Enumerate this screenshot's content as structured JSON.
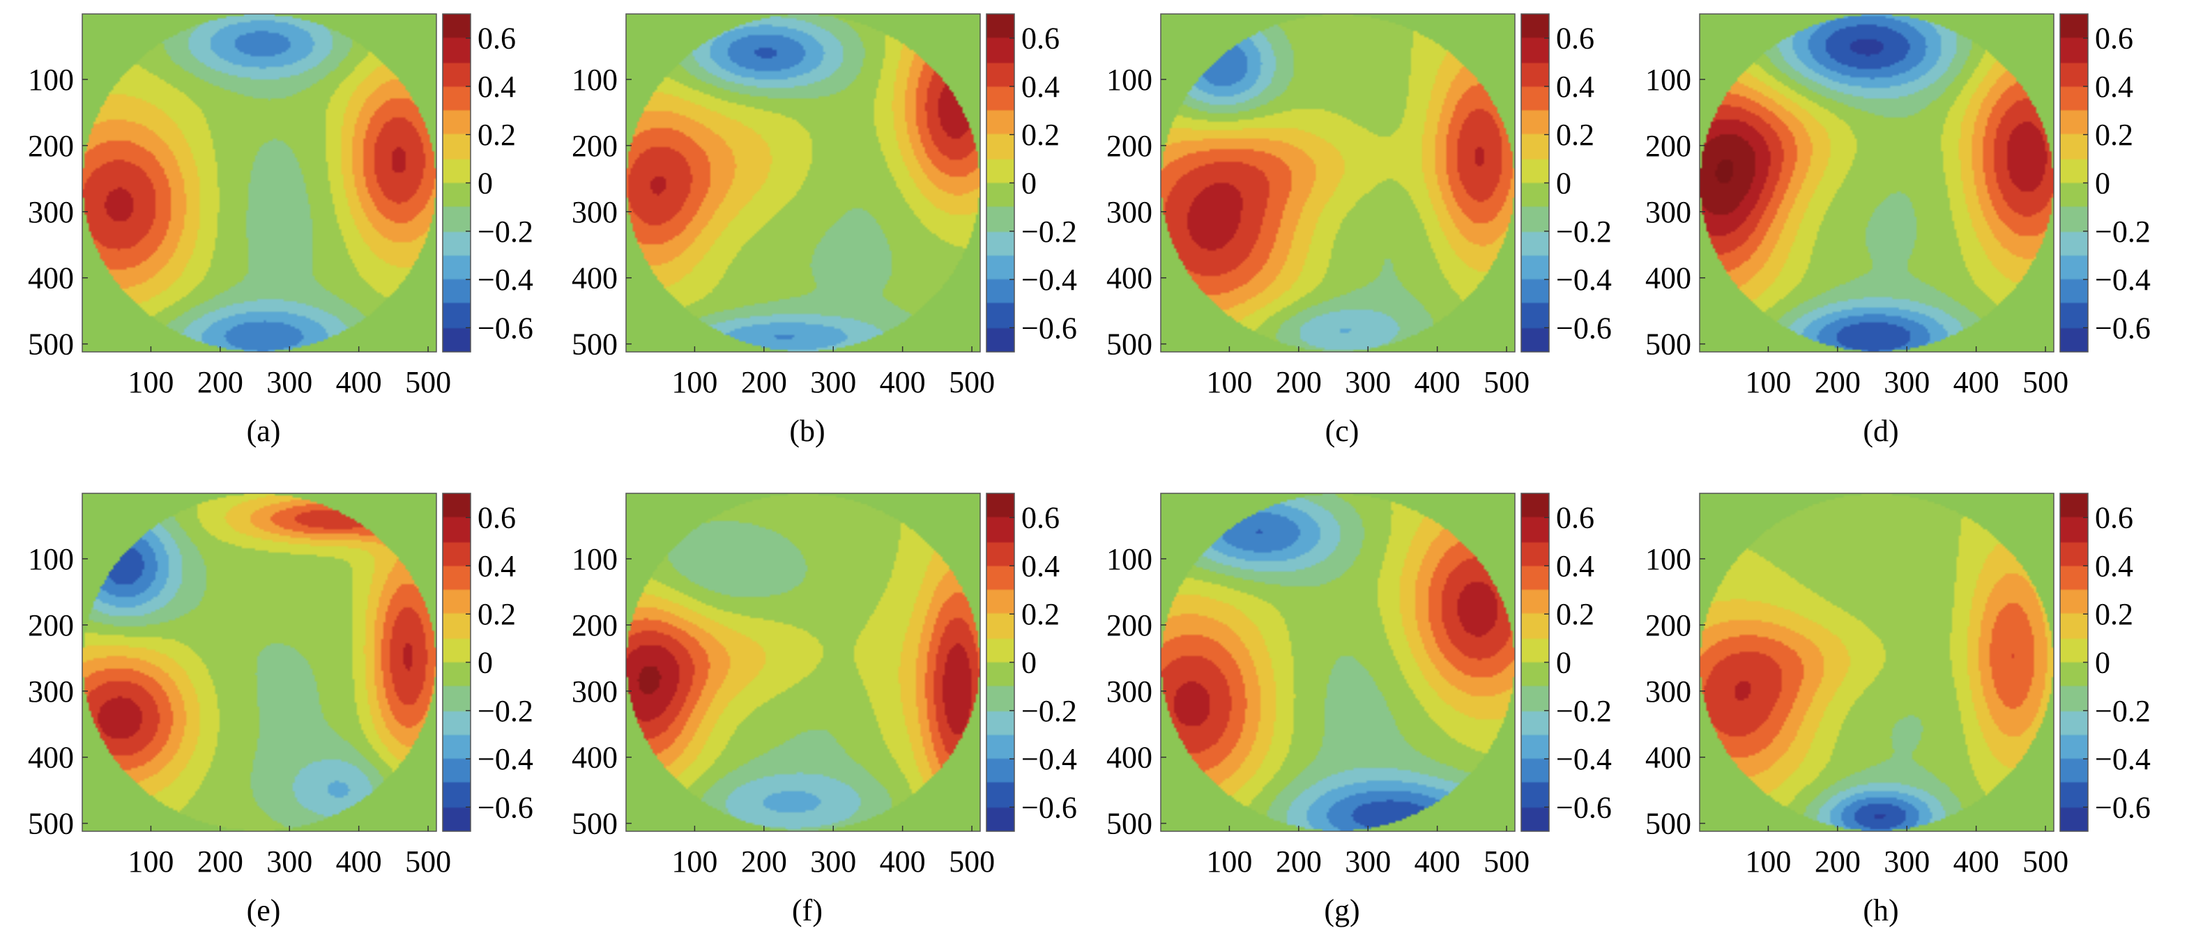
{
  "colorbar": {
    "ticks": [
      "0.6",
      "0.4",
      "0.2",
      "0",
      "−0.2",
      "−0.4",
      "−0.6"
    ],
    "range": [
      -0.7,
      0.7
    ]
  },
  "axes": {
    "x_ticks": [
      "100",
      "200",
      "300",
      "400",
      "500"
    ],
    "y_ticks": [
      "100",
      "200",
      "300",
      "400",
      "500"
    ],
    "x_range": [
      1,
      512
    ],
    "y_range": [
      1,
      512
    ]
  },
  "colors": {
    "background": "#8cc654",
    "colormap": [
      "#2a2f8e",
      "#2c59b0",
      "#4c9ed6",
      "#86c7c9",
      "#8cc654",
      "#e0dc3c",
      "#f3a83c",
      "#e5502b",
      "#b21f24",
      "#7b1416"
    ]
  },
  "chart_data": [
    {
      "type": "heatmap",
      "label": "(a)",
      "blobs": [
        {
          "x": 60,
          "y": 290,
          "sx": 80,
          "sy": 95,
          "v": 0.55
        },
        {
          "x": 455,
          "y": 225,
          "sx": 55,
          "sy": 95,
          "v": 0.55
        },
        {
          "x": 260,
          "y": 45,
          "sx": 85,
          "sy": 38,
          "v": -0.42
        },
        {
          "x": 260,
          "y": 490,
          "sx": 95,
          "sy": 35,
          "v": -0.42
        },
        {
          "x": 270,
          "y": 300,
          "sx": 120,
          "sy": 140,
          "v": -0.15
        }
      ]
    },
    {
      "type": "heatmap",
      "label": "(b)",
      "blobs": [
        {
          "x": 40,
          "y": 270,
          "sx": 60,
          "sy": 90,
          "v": 0.45
        },
        {
          "x": 160,
          "y": 230,
          "sx": 90,
          "sy": 70,
          "v": 0.2
        },
        {
          "x": 475,
          "y": 150,
          "sx": 55,
          "sy": 100,
          "v": 0.6
        },
        {
          "x": 200,
          "y": 60,
          "sx": 80,
          "sy": 40,
          "v": -0.5
        },
        {
          "x": 220,
          "y": 490,
          "sx": 110,
          "sy": 25,
          "v": -0.35
        },
        {
          "x": 330,
          "y": 320,
          "sx": 150,
          "sy": 150,
          "v": -0.13
        }
      ]
    },
    {
      "type": "heatmap",
      "label": "(c)",
      "blobs": [
        {
          "x": 80,
          "y": 330,
          "sx": 95,
          "sy": 95,
          "v": 0.55
        },
        {
          "x": 180,
          "y": 230,
          "sx": 120,
          "sy": 50,
          "v": 0.2
        },
        {
          "x": 460,
          "y": 220,
          "sx": 50,
          "sy": 110,
          "v": 0.55
        },
        {
          "x": 90,
          "y": 80,
          "sx": 55,
          "sy": 55,
          "v": -0.5
        },
        {
          "x": 310,
          "y": 330,
          "sx": 140,
          "sy": 160,
          "v": -0.13
        },
        {
          "x": 250,
          "y": 480,
          "sx": 80,
          "sy": 30,
          "v": -0.25
        }
      ]
    },
    {
      "type": "heatmap",
      "label": "(d)",
      "blobs": [
        {
          "x": 30,
          "y": 260,
          "sx": 70,
          "sy": 110,
          "v": 0.65
        },
        {
          "x": 120,
          "y": 200,
          "sx": 80,
          "sy": 60,
          "v": 0.2
        },
        {
          "x": 470,
          "y": 220,
          "sx": 60,
          "sy": 110,
          "v": 0.6
        },
        {
          "x": 240,
          "y": 50,
          "sx": 95,
          "sy": 50,
          "v": -0.6
        },
        {
          "x": 250,
          "y": 490,
          "sx": 90,
          "sy": 35,
          "v": -0.55
        },
        {
          "x": 280,
          "y": 300,
          "sx": 130,
          "sy": 140,
          "v": -0.12
        }
      ]
    },
    {
      "type": "heatmap",
      "label": "(e)",
      "blobs": [
        {
          "x": 60,
          "y": 340,
          "sx": 75,
          "sy": 75,
          "v": 0.6
        },
        {
          "x": 470,
          "y": 250,
          "sx": 40,
          "sy": 110,
          "v": 0.55
        },
        {
          "x": 360,
          "y": 40,
          "sx": 95,
          "sy": 25,
          "v": 0.5
        },
        {
          "x": 60,
          "y": 110,
          "sx": 55,
          "sy": 60,
          "v": -0.55
        },
        {
          "x": 380,
          "y": 450,
          "sx": 60,
          "sy": 40,
          "v": -0.25
        },
        {
          "x": 260,
          "y": 320,
          "sx": 150,
          "sy": 170,
          "v": -0.12
        }
      ]
    },
    {
      "type": "heatmap",
      "label": "(f)",
      "blobs": [
        {
          "x": 30,
          "y": 300,
          "sx": 60,
          "sy": 95,
          "v": 0.55
        },
        {
          "x": 150,
          "y": 250,
          "sx": 110,
          "sy": 55,
          "v": 0.2
        },
        {
          "x": 480,
          "y": 300,
          "sx": 38,
          "sy": 130,
          "v": 0.6
        },
        {
          "x": 390,
          "y": 300,
          "sx": 45,
          "sy": 100,
          "v": 0.12
        },
        {
          "x": 130,
          "y": 110,
          "sx": 90,
          "sy": 55,
          "v": -0.2
        },
        {
          "x": 230,
          "y": 470,
          "sx": 100,
          "sy": 35,
          "v": -0.25
        },
        {
          "x": 290,
          "y": 340,
          "sx": 130,
          "sy": 150,
          "v": -0.12
        }
      ]
    },
    {
      "type": "heatmap",
      "label": "(g)",
      "blobs": [
        {
          "x": 50,
          "y": 320,
          "sx": 80,
          "sy": 100,
          "v": 0.55
        },
        {
          "x": 455,
          "y": 180,
          "sx": 70,
          "sy": 100,
          "v": 0.58
        },
        {
          "x": 140,
          "y": 60,
          "sx": 85,
          "sy": 45,
          "v": -0.5
        },
        {
          "x": 340,
          "y": 490,
          "sx": 110,
          "sy": 40,
          "v": -0.5
        },
        {
          "x": 290,
          "y": 330,
          "sx": 120,
          "sy": 140,
          "v": -0.15
        }
      ]
    },
    {
      "type": "heatmap",
      "label": "(h)",
      "blobs": [
        {
          "x": 60,
          "y": 320,
          "sx": 80,
          "sy": 90,
          "v": 0.5
        },
        {
          "x": 170,
          "y": 250,
          "sx": 100,
          "sy": 50,
          "v": 0.18
        },
        {
          "x": 450,
          "y": 250,
          "sx": 45,
          "sy": 110,
          "v": 0.45
        },
        {
          "x": 260,
          "y": 490,
          "sx": 60,
          "sy": 30,
          "v": -0.55
        },
        {
          "x": 270,
          "y": 300,
          "sx": 140,
          "sy": 150,
          "v": -0.13
        }
      ]
    }
  ]
}
